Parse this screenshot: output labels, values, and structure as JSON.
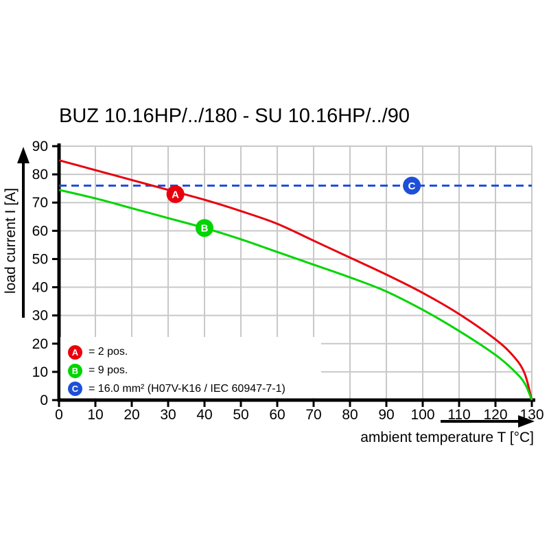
{
  "title": "BUZ 10.16HP/../180 - SU 10.16HP/../90",
  "axes": {
    "xlabel": "ambient temperature T [°C]",
    "ylabel": "load current I [A]"
  },
  "colors": {
    "red": "#e8000d",
    "green": "#00d500",
    "blue": "#1e4fd8",
    "grid": "#c8c8c8",
    "axis": "#000000"
  },
  "legend": {
    "items": [
      {
        "key": "A",
        "label": "= 2 pos.",
        "color": "#e8000d"
      },
      {
        "key": "B",
        "label": "= 9 pos.",
        "color": "#00d500"
      },
      {
        "key": "C",
        "label": "= 16.0 mm² (H07V-K16 / IEC 60947-7-1)",
        "color": "#1e4fd8"
      }
    ]
  },
  "chart_data": {
    "type": "line",
    "title": "BUZ 10.16HP/../180 - SU 10.16HP/../90",
    "xlabel": "ambient temperature T [°C]",
    "ylabel": "load current I [A]",
    "xlim": [
      0,
      130
    ],
    "ylim": [
      0,
      90
    ],
    "xticks": [
      0,
      10,
      20,
      30,
      40,
      50,
      60,
      70,
      80,
      90,
      100,
      110,
      120,
      130
    ],
    "yticks": [
      0,
      10,
      20,
      30,
      40,
      50,
      60,
      70,
      80,
      90
    ],
    "grid": true,
    "legend_position": "bottom-left",
    "series": [
      {
        "name": "A",
        "label": "2 pos.",
        "color": "#e8000d",
        "style": "solid",
        "points": [
          [
            0,
            85
          ],
          [
            10,
            81.5
          ],
          [
            20,
            78
          ],
          [
            30,
            74.5
          ],
          [
            40,
            71
          ],
          [
            50,
            67
          ],
          [
            60,
            62.5
          ],
          [
            70,
            56.5
          ],
          [
            80,
            50.5
          ],
          [
            90,
            44.5
          ],
          [
            100,
            38
          ],
          [
            110,
            30.5
          ],
          [
            120,
            21.5
          ],
          [
            125,
            15.5
          ],
          [
            128,
            9.5
          ],
          [
            130,
            0
          ]
        ]
      },
      {
        "name": "B",
        "label": "9 pos.",
        "color": "#00d500",
        "style": "solid",
        "points": [
          [
            0,
            74.5
          ],
          [
            10,
            71.5
          ],
          [
            20,
            68
          ],
          [
            30,
            64.5
          ],
          [
            40,
            61
          ],
          [
            50,
            57
          ],
          [
            60,
            52.5
          ],
          [
            70,
            48
          ],
          [
            80,
            43.5
          ],
          [
            90,
            38.5
          ],
          [
            100,
            32
          ],
          [
            110,
            24.5
          ],
          [
            120,
            16
          ],
          [
            125,
            10.5
          ],
          [
            128,
            6
          ],
          [
            130,
            0
          ]
        ]
      },
      {
        "name": "C",
        "label": "16.0 mm² (H07V-K16 / IEC 60947-7-1)",
        "color": "#1e4fd8",
        "style": "dashed",
        "points": [
          [
            0,
            76
          ],
          [
            130,
            76
          ]
        ]
      }
    ],
    "markers": [
      {
        "key": "A",
        "x": 32,
        "y": 73,
        "color": "#e8000d"
      },
      {
        "key": "B",
        "x": 40,
        "y": 61,
        "color": "#00d500"
      },
      {
        "key": "C",
        "x": 97,
        "y": 76,
        "color": "#1e4fd8"
      }
    ]
  }
}
